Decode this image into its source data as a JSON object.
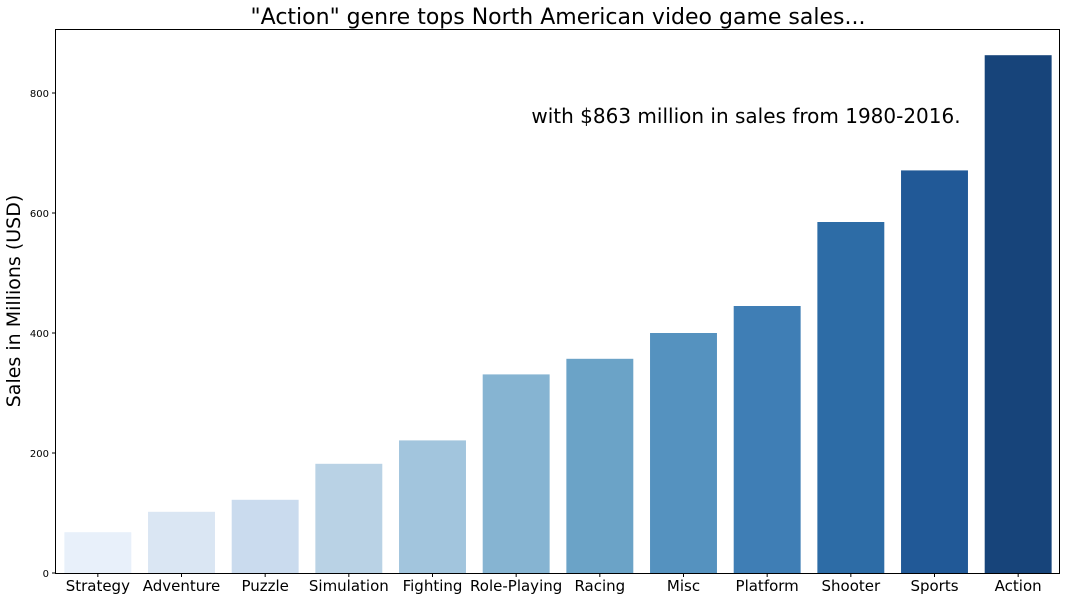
{
  "chart_data": {
    "type": "bar",
    "title": "\"Action\" genre tops North American video game sales...",
    "annotation": "with $863 million in sales from 1980-2016.",
    "ylabel": "Sales in Millions (USD)",
    "xlabel": "",
    "ylim": [
      0,
      905
    ],
    "yticks": [
      0,
      200,
      400,
      600,
      800
    ],
    "categories": [
      "Strategy",
      "Adventure",
      "Puzzle",
      "Simulation",
      "Fighting",
      "Role-Playing",
      "Racing",
      "Misc",
      "Platform",
      "Shooter",
      "Sports",
      "Action"
    ],
    "values": [
      68,
      102,
      122,
      182,
      221,
      331,
      357,
      400,
      445,
      585,
      671,
      863
    ],
    "colors": [
      "#e8f0fa",
      "#dae6f3",
      "#cadbee",
      "#b9d2e5",
      "#a2c5dd",
      "#86b4d2",
      "#6ba3c7",
      "#5592bf",
      "#3f7eb5",
      "#2d6ca6",
      "#215997",
      "#17447a"
    ],
    "grid": false,
    "legend": "none"
  }
}
